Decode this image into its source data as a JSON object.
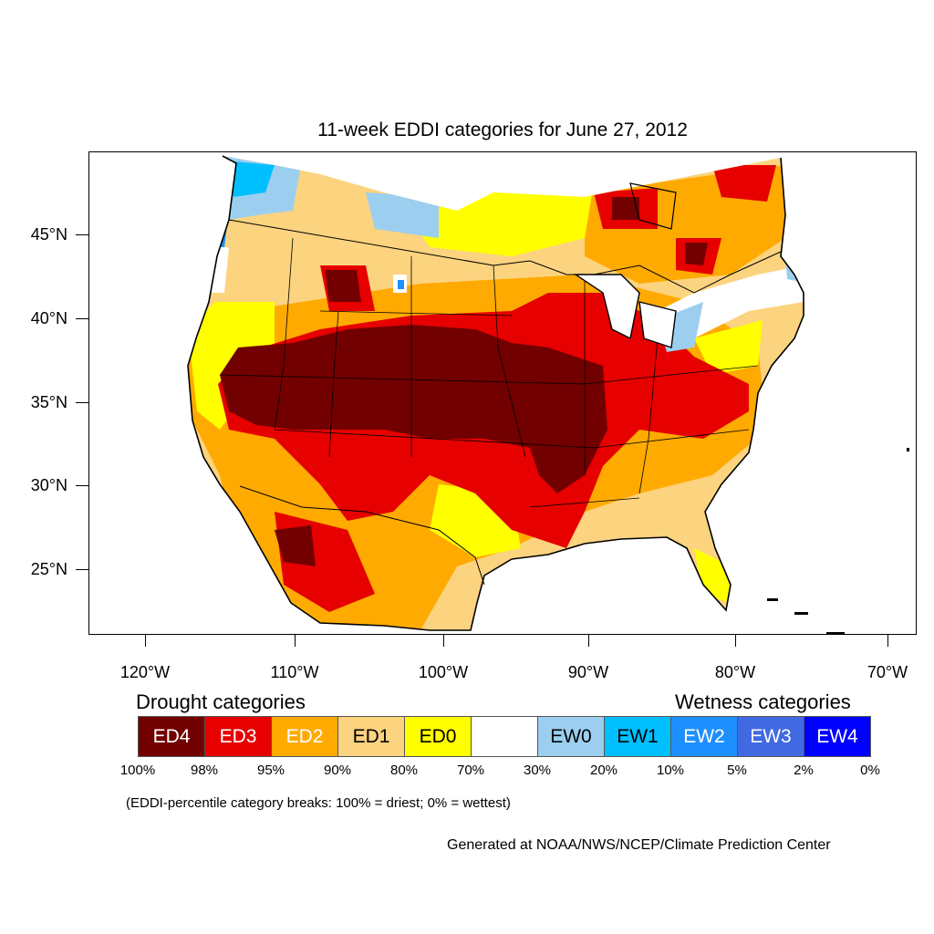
{
  "title": "11-week EDDI categories for June 27, 2012",
  "lat_labels": [
    "45°N",
    "40°N",
    "35°N",
    "30°N",
    "25°N"
  ],
  "lon_labels": [
    "120°W",
    "110°W",
    "100°W",
    "90°W",
    "80°W",
    "70°W"
  ],
  "legend": {
    "drought_heading": "Drought categories",
    "wetness_heading": "Wetness categories",
    "categories": [
      {
        "label": "ED4",
        "color": "#730000",
        "text_color": "#ffffff"
      },
      {
        "label": "ED3",
        "color": "#e60000",
        "text_color": "#ffffff"
      },
      {
        "label": "ED2",
        "color": "#ffaa00",
        "text_color": "#ffffff"
      },
      {
        "label": "ED1",
        "color": "#fcd37f",
        "text_color": "#000000"
      },
      {
        "label": "ED0",
        "color": "#ffff00",
        "text_color": "#000000"
      },
      {
        "label": "",
        "color": "#ffffff",
        "text_color": "#000000"
      },
      {
        "label": "EW0",
        "color": "#9ccfef",
        "text_color": "#000000"
      },
      {
        "label": "EW1",
        "color": "#00bfff",
        "text_color": "#000000"
      },
      {
        "label": "EW2",
        "color": "#1e8fff",
        "text_color": "#ffffff"
      },
      {
        "label": "EW3",
        "color": "#4169e1",
        "text_color": "#ffffff"
      },
      {
        "label": "EW4",
        "color": "#0000ff",
        "text_color": "#ffffff"
      }
    ],
    "percentiles": [
      "100%",
      "98%",
      "95%",
      "90%",
      "80%",
      "70%",
      "30%",
      "20%",
      "10%",
      "5%",
      "2%",
      "0%"
    ]
  },
  "note": "(EDDI-percentile category breaks: 100% = driest; 0% = wettest)",
  "credit": "Generated at NOAA/NWS/NCEP/Climate Prediction Center"
}
